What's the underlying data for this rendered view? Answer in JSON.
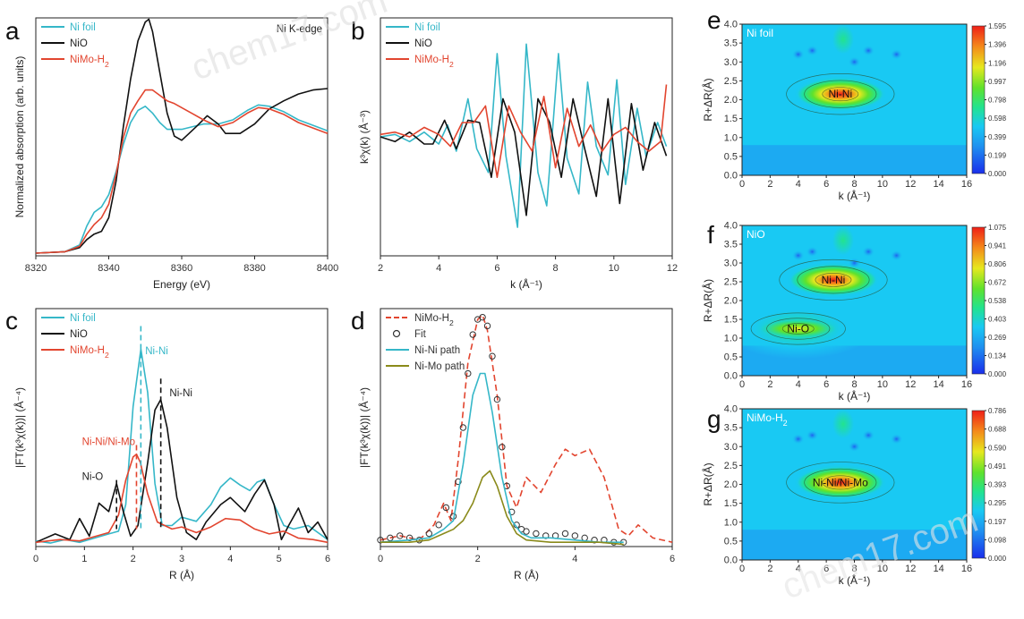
{
  "figure": {
    "watermark": "chem17.com",
    "colors": {
      "ni_foil": "#35b7c8",
      "nio": "#111111",
      "nimo": "#e2452f",
      "ni_mo_path": "#8a8a1a",
      "fit_marker": "#333333"
    }
  },
  "chart_data": [
    {
      "id": "a",
      "type": "line",
      "panel_label": "a",
      "xlabel": "Energy (eV)",
      "ylabel": "Normalized absorption (arb. units)",
      "xlim": [
        8320,
        8400
      ],
      "ylim": [
        0,
        1.75
      ],
      "xticks": [
        "8320",
        "8340",
        "8360",
        "8380",
        "8400"
      ],
      "annotation": "Ni K-edge",
      "legend": [
        "Ni foil",
        "NiO",
        "NiMo-H2"
      ],
      "series": [
        {
          "name": "Ni foil",
          "color": "#35b7c8",
          "x": [
            8320,
            8328,
            8332,
            8334,
            8336,
            8338,
            8340,
            8342,
            8344,
            8346,
            8348,
            8350,
            8352,
            8354,
            8356,
            8358,
            8360,
            8363,
            8366,
            8370,
            8374,
            8378,
            8381,
            8384,
            8388,
            8392,
            8396,
            8400
          ],
          "y": [
            0.02,
            0.03,
            0.08,
            0.22,
            0.32,
            0.36,
            0.45,
            0.62,
            0.82,
            0.98,
            1.07,
            1.1,
            1.05,
            0.98,
            0.93,
            0.93,
            0.93,
            0.95,
            0.97,
            0.97,
            1.0,
            1.07,
            1.11,
            1.1,
            1.06,
            1.0,
            0.96,
            0.92
          ]
        },
        {
          "name": "NiO",
          "color": "#111111",
          "x": [
            8320,
            8328,
            8332,
            8334,
            8336,
            8338,
            8340,
            8342,
            8344,
            8346,
            8348,
            8350,
            8351,
            8352,
            8354,
            8356,
            8358,
            8360,
            8362,
            8364,
            8367,
            8370,
            8372,
            8376,
            8380,
            8384,
            8388,
            8392,
            8396,
            8400
          ],
          "y": [
            0.02,
            0.03,
            0.06,
            0.12,
            0.16,
            0.18,
            0.28,
            0.55,
            0.95,
            1.3,
            1.58,
            1.72,
            1.74,
            1.65,
            1.35,
            1.05,
            0.88,
            0.85,
            0.9,
            0.95,
            1.03,
            0.97,
            0.9,
            0.9,
            0.97,
            1.08,
            1.14,
            1.19,
            1.22,
            1.23
          ]
        },
        {
          "name": "NiMo-H2",
          "color": "#e2452f",
          "x": [
            8320,
            8328,
            8332,
            8334,
            8336,
            8338,
            8340,
            8342,
            8344,
            8346,
            8348,
            8350,
            8352,
            8354,
            8356,
            8358,
            8362,
            8366,
            8370,
            8374,
            8378,
            8381,
            8384,
            8388,
            8392,
            8396,
            8400
          ],
          "y": [
            0.02,
            0.03,
            0.07,
            0.16,
            0.23,
            0.28,
            0.38,
            0.6,
            0.87,
            1.05,
            1.14,
            1.22,
            1.22,
            1.18,
            1.14,
            1.12,
            1.06,
            1.0,
            0.95,
            0.98,
            1.05,
            1.09,
            1.08,
            1.04,
            0.98,
            0.94,
            0.9
          ]
        }
      ]
    },
    {
      "id": "b",
      "type": "line",
      "panel_label": "b",
      "xlabel": "k (Å⁻¹)",
      "ylabel": "k³χ(k) (Å⁻³)",
      "xlim": [
        2,
        12
      ],
      "ylim": [
        -5,
        5
      ],
      "xticks": [
        "2",
        "4",
        "6",
        "8",
        "10",
        "12"
      ],
      "legend": [
        "Ni foil",
        "NiO",
        "NiMo-H2"
      ],
      "series": [
        {
          "name": "Ni foil",
          "color": "#35b7c8",
          "x": [
            2.0,
            2.5,
            3.0,
            3.5,
            4.0,
            4.3,
            4.6,
            5.0,
            5.3,
            5.7,
            6.0,
            6.3,
            6.7,
            7.0,
            7.4,
            7.7,
            8.1,
            8.4,
            8.8,
            9.1,
            9.4,
            9.8,
            10.1,
            10.4,
            10.8,
            11.1,
            11.5,
            11.8
          ],
          "y": [
            0.0,
            0.1,
            -0.2,
            0.2,
            -0.3,
            0.5,
            -0.6,
            1.6,
            -0.5,
            -1.5,
            3.5,
            -0.8,
            -3.8,
            3.9,
            -1.5,
            -2.9,
            3.5,
            -0.9,
            -2.4,
            2.3,
            -0.4,
            -1.6,
            2.4,
            -2.0,
            1.2,
            -0.8,
            0.6,
            -0.4
          ]
        },
        {
          "name": "NiO",
          "color": "#111111",
          "x": [
            2.0,
            2.5,
            3.0,
            3.5,
            3.8,
            4.2,
            4.6,
            5.0,
            5.4,
            5.8,
            6.2,
            6.6,
            7.0,
            7.4,
            7.8,
            8.2,
            8.6,
            9.0,
            9.4,
            9.8,
            10.2,
            10.6,
            11.0,
            11.4,
            11.8
          ],
          "y": [
            0.0,
            -0.2,
            0.2,
            -0.3,
            -0.3,
            0.7,
            -0.5,
            0.7,
            0.6,
            -1.7,
            1.6,
            0.2,
            -3.3,
            1.6,
            0.6,
            -1.7,
            1.6,
            -0.5,
            -2.5,
            1.6,
            -2.8,
            1.4,
            -1.4,
            0.6,
            -0.8
          ]
        },
        {
          "name": "NiMo-H2",
          "color": "#e2452f",
          "x": [
            2.0,
            2.5,
            3.0,
            3.5,
            4.0,
            4.4,
            4.8,
            5.2,
            5.6,
            6.0,
            6.4,
            6.8,
            7.2,
            7.6,
            8.0,
            8.4,
            8.8,
            9.2,
            9.6,
            10.0,
            10.4,
            10.8,
            11.2,
            11.6,
            11.8
          ],
          "y": [
            0.1,
            0.2,
            0.0,
            0.4,
            0.1,
            -0.4,
            0.6,
            0.6,
            1.3,
            -1.7,
            1.3,
            0.2,
            -0.6,
            1.7,
            -1.3,
            1.2,
            -0.4,
            0.5,
            -0.6,
            0.1,
            0.4,
            -0.2,
            -0.6,
            -0.2,
            2.2
          ]
        }
      ]
    },
    {
      "id": "c",
      "type": "line",
      "panel_label": "c",
      "xlabel": "R (Å)",
      "ylabel": "|FT(k³χ(k))| (Å⁻⁴)",
      "xlim": [
        0,
        6
      ],
      "ylim": [
        0,
        3.4
      ],
      "xticks": [
        "0",
        "1",
        "2",
        "3",
        "4",
        "5",
        "6"
      ],
      "legend": [
        "Ni foil",
        "NiO",
        "NiMo-H2"
      ],
      "annotations": [
        "Ni-Ni",
        "Ni-Ni",
        "Ni-Ni/Ni-Mo",
        "Ni-O"
      ],
      "marker_lines_x": [
        2.16,
        2.57,
        2.07,
        1.66
      ],
      "series": [
        {
          "name": "Ni foil",
          "color": "#35b7c8",
          "x": [
            0.0,
            0.3,
            0.6,
            0.9,
            1.2,
            1.5,
            1.7,
            1.85,
            2.0,
            2.16,
            2.3,
            2.45,
            2.6,
            2.8,
            3.0,
            3.3,
            3.6,
            3.8,
            4.0,
            4.2,
            4.4,
            4.55,
            4.7,
            4.9,
            5.1,
            5.3,
            5.6,
            6.0
          ],
          "y": [
            0.08,
            0.05,
            0.1,
            0.06,
            0.12,
            0.18,
            0.22,
            0.6,
            2.0,
            2.82,
            2.2,
            0.9,
            0.3,
            0.3,
            0.42,
            0.36,
            0.6,
            0.85,
            0.98,
            0.88,
            0.8,
            0.92,
            0.96,
            0.6,
            0.3,
            0.25,
            0.3,
            0.1
          ]
        },
        {
          "name": "NiO",
          "color": "#111111",
          "x": [
            0.0,
            0.4,
            0.7,
            0.9,
            1.1,
            1.3,
            1.5,
            1.66,
            1.8,
            1.95,
            2.1,
            2.3,
            2.45,
            2.57,
            2.7,
            2.9,
            3.1,
            3.3,
            3.5,
            3.8,
            4.0,
            4.3,
            4.5,
            4.7,
            4.9,
            5.05,
            5.2,
            5.4,
            5.6,
            5.8,
            6.0
          ],
          "y": [
            0.06,
            0.18,
            0.1,
            0.4,
            0.15,
            0.62,
            0.5,
            0.9,
            0.5,
            0.15,
            0.3,
            1.2,
            1.95,
            2.1,
            1.7,
            0.7,
            0.2,
            0.1,
            0.35,
            0.6,
            0.7,
            0.5,
            0.75,
            0.95,
            0.6,
            0.1,
            0.3,
            0.55,
            0.2,
            0.35,
            0.1
          ]
        },
        {
          "name": "NiMo-H2",
          "color": "#e2452f",
          "x": [
            0.0,
            0.5,
            0.9,
            1.2,
            1.5,
            1.7,
            1.85,
            2.0,
            2.07,
            2.15,
            2.3,
            2.5,
            2.8,
            3.0,
            3.3,
            3.6,
            3.9,
            4.2,
            4.5,
            4.8,
            5.1,
            5.4,
            5.7,
            6.0
          ],
          "y": [
            0.06,
            0.1,
            0.08,
            0.14,
            0.2,
            0.45,
            0.95,
            1.28,
            1.32,
            1.2,
            0.75,
            0.35,
            0.25,
            0.28,
            0.2,
            0.28,
            0.4,
            0.38,
            0.25,
            0.18,
            0.22,
            0.12,
            0.1,
            0.06
          ]
        }
      ]
    },
    {
      "id": "d",
      "type": "line",
      "panel_label": "d",
      "xlabel": "R (Å)",
      "ylabel": "|FT(k³χ(k))| (Å⁻⁴)",
      "xlim": [
        0,
        6
      ],
      "ylim": [
        0,
        1.1
      ],
      "xticks": [
        "0",
        "2",
        "4",
        "6"
      ],
      "legend": [
        "NiMo-H2",
        "Fit",
        "Ni-Ni path",
        "Ni-Mo path"
      ],
      "series": [
        {
          "name": "NiMo-H2",
          "color": "#e2452f",
          "style": "dashed",
          "x": [
            0.0,
            0.4,
            0.8,
            1.1,
            1.3,
            1.45,
            1.6,
            1.8,
            2.0,
            2.1,
            2.2,
            2.4,
            2.6,
            2.8,
            3.0,
            3.3,
            3.6,
            3.8,
            4.0,
            4.3,
            4.6,
            4.9,
            5.1,
            5.3,
            5.6,
            6.0
          ],
          "y": [
            0.03,
            0.05,
            0.03,
            0.1,
            0.2,
            0.12,
            0.4,
            0.85,
            1.05,
            1.07,
            1.0,
            0.7,
            0.28,
            0.18,
            0.32,
            0.25,
            0.38,
            0.45,
            0.42,
            0.45,
            0.32,
            0.08,
            0.05,
            0.1,
            0.04,
            0.02
          ]
        },
        {
          "name": "Fit",
          "color": "#333333",
          "style": "markers",
          "x": [
            0.0,
            0.2,
            0.4,
            0.6,
            0.8,
            1.0,
            1.2,
            1.35,
            1.5,
            1.6,
            1.7,
            1.8,
            1.9,
            2.0,
            2.1,
            2.2,
            2.3,
            2.4,
            2.5,
            2.6,
            2.7,
            2.8,
            2.9,
            3.0,
            3.2,
            3.4,
            3.6,
            3.8,
            4.0,
            4.2,
            4.4,
            4.6,
            4.8,
            5.0
          ],
          "y": [
            0.03,
            0.04,
            0.05,
            0.04,
            0.03,
            0.06,
            0.1,
            0.18,
            0.14,
            0.3,
            0.55,
            0.8,
            0.98,
            1.05,
            1.06,
            1.02,
            0.88,
            0.68,
            0.46,
            0.28,
            0.16,
            0.1,
            0.08,
            0.07,
            0.06,
            0.05,
            0.05,
            0.06,
            0.05,
            0.04,
            0.03,
            0.03,
            0.02,
            0.02
          ]
        },
        {
          "name": "Ni-Ni path",
          "color": "#35b7c8",
          "style": "solid",
          "x": [
            0.0,
            0.6,
            1.0,
            1.3,
            1.5,
            1.7,
            1.9,
            2.05,
            2.15,
            2.3,
            2.5,
            2.7,
            2.9,
            3.1,
            3.5,
            4.0,
            4.5,
            5.0
          ],
          "y": [
            0.02,
            0.03,
            0.04,
            0.08,
            0.12,
            0.38,
            0.7,
            0.8,
            0.8,
            0.62,
            0.32,
            0.12,
            0.06,
            0.04,
            0.04,
            0.03,
            0.02,
            0.02
          ]
        },
        {
          "name": "Ni-Mo path",
          "color": "#8a8a1a",
          "style": "solid",
          "x": [
            0.0,
            0.6,
            1.0,
            1.3,
            1.5,
            1.7,
            1.9,
            2.1,
            2.25,
            2.4,
            2.6,
            2.8,
            3.0,
            3.5,
            4.0,
            4.5,
            5.0
          ],
          "y": [
            0.02,
            0.02,
            0.03,
            0.06,
            0.08,
            0.12,
            0.2,
            0.32,
            0.35,
            0.28,
            0.14,
            0.06,
            0.03,
            0.02,
            0.02,
            0.02,
            0.01
          ]
        }
      ]
    },
    {
      "id": "e",
      "type": "heatmap",
      "panel_label": "e",
      "title": "Ni foil",
      "xlabel": "k (Å⁻¹)",
      "ylabel": "R+ΔR(Å)",
      "xlim": [
        0,
        16
      ],
      "ylim": [
        0,
        4
      ],
      "xticks": [
        "0",
        "2",
        "4",
        "6",
        "8",
        "10",
        "12",
        "14",
        "16"
      ],
      "yticks": [
        "0.0",
        "0.5",
        "1.0",
        "1.5",
        "2.0",
        "2.5",
        "3.0",
        "3.5",
        "4.0"
      ],
      "colorbar": [
        "1.595",
        "1.396",
        "1.196",
        "0.997",
        "0.798",
        "0.598",
        "0.399",
        "0.199",
        "0.000"
      ],
      "peak_label": "Ni-Ni",
      "peak": {
        "k": 7.0,
        "R": 2.15
      }
    },
    {
      "id": "f",
      "type": "heatmap",
      "panel_label": "f",
      "title": "NiO",
      "xlabel": "k (Å⁻¹)",
      "ylabel": "R+ΔR(Å)",
      "xlim": [
        0,
        16
      ],
      "ylim": [
        0,
        4
      ],
      "xticks": [
        "0",
        "2",
        "4",
        "6",
        "8",
        "10",
        "12",
        "14",
        "16"
      ],
      "yticks": [
        "0.0",
        "0.5",
        "1.0",
        "1.5",
        "2.0",
        "2.5",
        "3.0",
        "3.5",
        "4.0"
      ],
      "colorbar": [
        "1.075",
        "0.941",
        "0.806",
        "0.672",
        "0.538",
        "0.403",
        "0.269",
        "0.134",
        "0.000"
      ],
      "peak_labels": [
        "Ni-Ni",
        "Ni-O"
      ],
      "peaks": [
        {
          "k": 6.5,
          "R": 2.55
        },
        {
          "k": 4.0,
          "R": 1.25
        }
      ]
    },
    {
      "id": "g",
      "type": "heatmap",
      "panel_label": "g",
      "title": "NiMo-H2",
      "xlabel": "k (Å⁻¹)",
      "ylabel": "R+ΔR(Å)",
      "xlim": [
        0,
        16
      ],
      "ylim": [
        0,
        4
      ],
      "xticks": [
        "0",
        "2",
        "4",
        "6",
        "8",
        "10",
        "12",
        "14",
        "16"
      ],
      "yticks": [
        "0.0",
        "0.5",
        "1.0",
        "1.5",
        "2.0",
        "2.5",
        "3.0",
        "3.5",
        "4.0"
      ],
      "colorbar": [
        "0.786",
        "0.688",
        "0.590",
        "0.491",
        "0.393",
        "0.295",
        "0.197",
        "0.098",
        "0.000"
      ],
      "peak_label": "Ni-Ni/Ni-Mo",
      "peak": {
        "k": 7.0,
        "R": 2.05
      }
    }
  ]
}
